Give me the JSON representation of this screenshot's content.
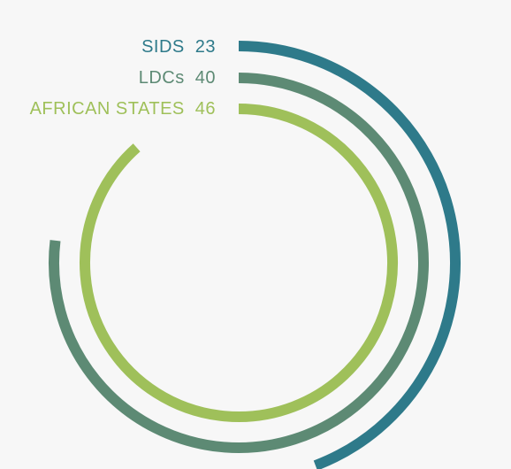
{
  "chart_data": {
    "type": "radial-bar",
    "total": 52,
    "series": [
      {
        "name": "SIDS",
        "value": 23,
        "color": "#2e7a8a"
      },
      {
        "name": "LDCs",
        "value": 40,
        "color": "#5d8a74"
      },
      {
        "name": "AFRICAN STATES",
        "value": 46,
        "color": "#9fc05a"
      }
    ],
    "legend_position": "top-left-of-arcs"
  },
  "legend": [
    {
      "label": "SIDS",
      "value": "23"
    },
    {
      "label": "LDCs",
      "value": "40"
    },
    {
      "label": "AFRICAN STATES",
      "value": "46"
    }
  ]
}
